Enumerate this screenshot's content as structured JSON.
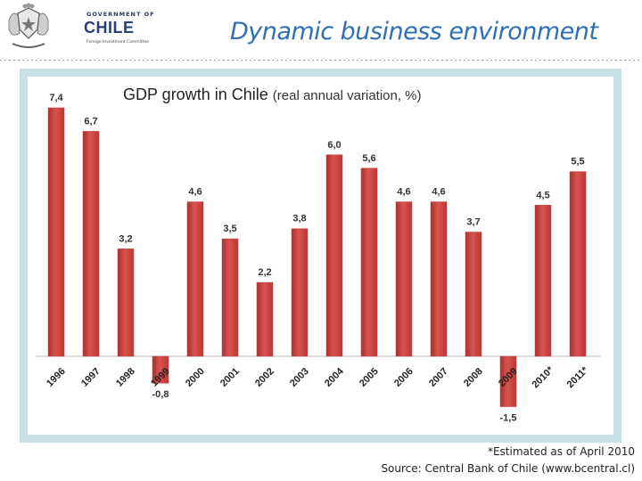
{
  "header": {
    "logo": {
      "government": "GOVERNMENT OF",
      "country": "CHILE",
      "committee": "Foreign Investment Committee"
    },
    "title": "Dynamic business environment"
  },
  "chart_data": {
    "type": "bar",
    "title": "GDP growth in Chile",
    "subtitle": "(real annual variation, %)",
    "categories": [
      "1996",
      "1997",
      "1998",
      "1999",
      "2000",
      "2001",
      "2002",
      "2003",
      "2004",
      "2005",
      "2006",
      "2007",
      "2008",
      "2009",
      "2010*",
      "2011*"
    ],
    "values": [
      7.4,
      6.7,
      3.2,
      -0.8,
      4.6,
      3.5,
      2.2,
      3.8,
      6.0,
      5.6,
      4.6,
      4.6,
      3.7,
      -1.5,
      4.5,
      5.5
    ],
    "value_labels": [
      "7,4",
      "6,7",
      "3,2",
      "-0,8",
      "4,6",
      "3,5",
      "2,2",
      "3,8",
      "6,0",
      "5,6",
      "4,6",
      "4,6",
      "3,7",
      "-1,5",
      "4,5",
      "5,5"
    ],
    "bar_color": "#c9403d",
    "frame_color": "#c9e1e6",
    "ylim": [
      -1.5,
      7.4
    ],
    "grid": false
  },
  "footer": {
    "footnote": "*Estimated as of April 2010",
    "source": "Source: Central Bank of Chile (www.bcentral.cl)"
  }
}
